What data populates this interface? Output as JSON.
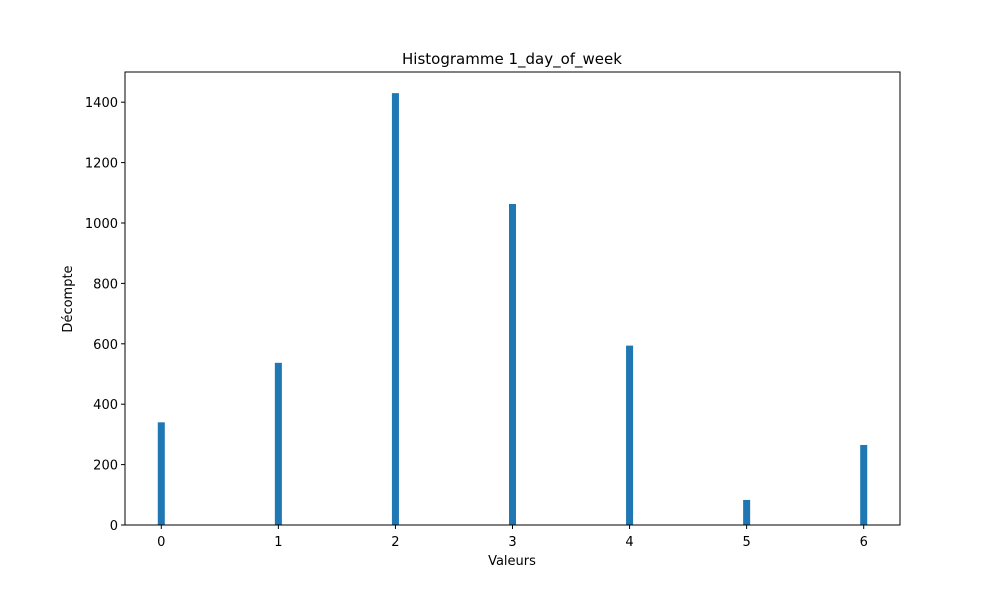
{
  "chart_data": {
    "type": "bar",
    "title": "Histogramme 1_day_of_week",
    "xlabel": "Valeurs",
    "ylabel": "Décompte",
    "x": [
      0,
      1,
      2,
      3,
      4,
      5,
      6
    ],
    "values": [
      340,
      537,
      1430,
      1063,
      594,
      83,
      265
    ],
    "bin_width": 0.06,
    "xlim": [
      -0.31,
      6.31
    ],
    "ylim": [
      0,
      1500
    ],
    "xticks": [
      0,
      1,
      2,
      3,
      4,
      5,
      6
    ],
    "yticks": [
      0,
      200,
      400,
      600,
      800,
      1000,
      1200,
      1400
    ],
    "bar_color": "#1f77b4",
    "grid": false,
    "legend": "none"
  }
}
